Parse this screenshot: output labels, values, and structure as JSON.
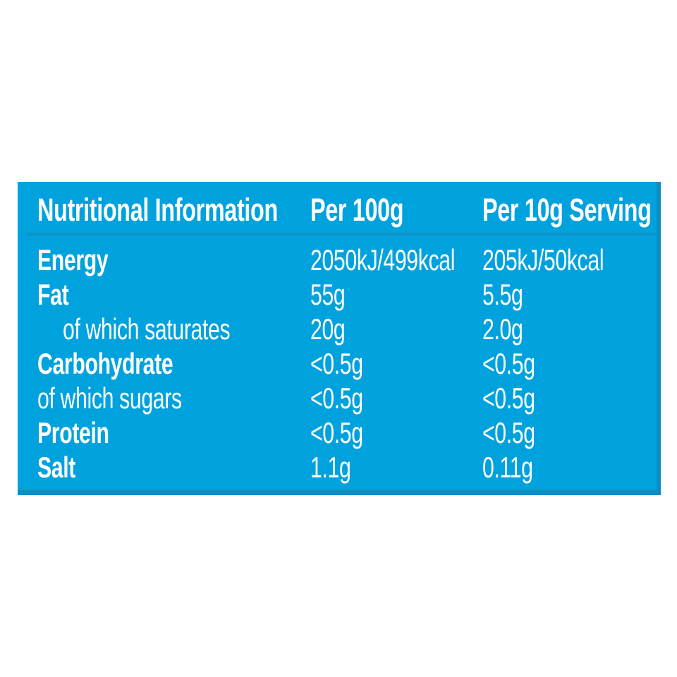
{
  "panel": {
    "background": "#00a2de",
    "edge_shadow": "#0b8fc3",
    "divider": "#0f93c6",
    "text_color": "#ffffff",
    "page_background": "#ffffff"
  },
  "table": {
    "headers": [
      "Nutritional Information",
      "Per 100g",
      "Per 10g Serving"
    ],
    "rows": [
      {
        "label": "Energy",
        "bold": true,
        "indent": false,
        "per100g": "2050kJ/499kcal",
        "per_serving": "205kJ/50kcal"
      },
      {
        "label": "Fat",
        "bold": true,
        "indent": false,
        "per100g": "55g",
        "per_serving": "5.5g"
      },
      {
        "label": "of which saturates",
        "bold": false,
        "indent": true,
        "per100g": "20g",
        "per_serving": "2.0g"
      },
      {
        "label": "Carbohydrate",
        "bold": true,
        "indent": false,
        "per100g": "<0.5g",
        "per_serving": "<0.5g"
      },
      {
        "label": "of which sugars",
        "bold": false,
        "indent": false,
        "per100g": "<0.5g",
        "per_serving": "<0.5g"
      },
      {
        "label": "Protein",
        "bold": true,
        "indent": false,
        "per100g": "<0.5g",
        "per_serving": "<0.5g"
      },
      {
        "label": "Salt",
        "bold": true,
        "indent": false,
        "per100g": "1.1g",
        "per_serving": "0.11g"
      }
    ]
  }
}
